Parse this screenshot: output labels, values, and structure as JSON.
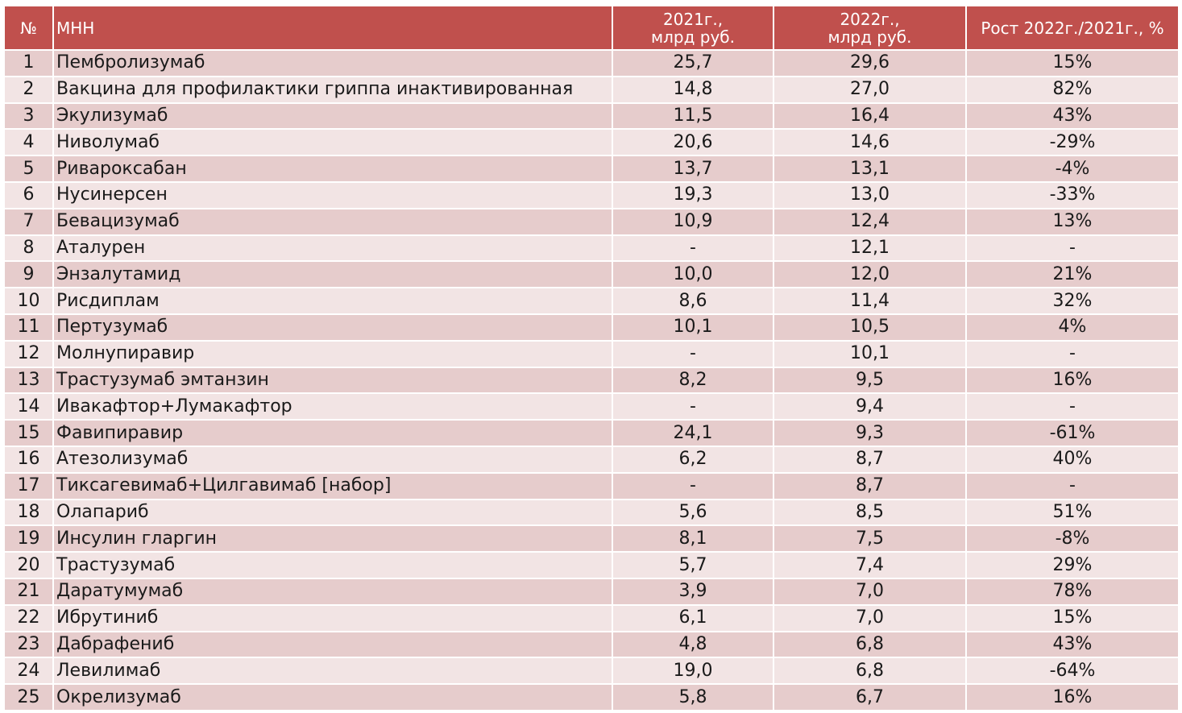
{
  "headers": {
    "num": "№",
    "name": "МНН",
    "y2021_line1": "2021г.,",
    "y2021_line2": "млрд руб.",
    "y2022_line1": "2022г.,",
    "y2022_line2": "млрд руб.",
    "growth": "Рост 2022г./2021г., %"
  },
  "colors": {
    "header_bg": "#c0504d",
    "row_dark": "#e6cccc",
    "row_light": "#f2e4e4"
  },
  "rows": [
    {
      "num": "1",
      "name": "Пембролизумаб",
      "v2021": "25,7",
      "v2022": "29,6",
      "growth": "15%"
    },
    {
      "num": "2",
      "name": "Вакцина для профилактики гриппа инактивированная",
      "v2021": "14,8",
      "v2022": "27,0",
      "growth": "82%"
    },
    {
      "num": "3",
      "name": "Экулизумаб",
      "v2021": "11,5",
      "v2022": "16,4",
      "growth": "43%"
    },
    {
      "num": "4",
      "name": "Ниволумаб",
      "v2021": "20,6",
      "v2022": "14,6",
      "growth": "-29%"
    },
    {
      "num": "5",
      "name": "Ривароксабан",
      "v2021": "13,7",
      "v2022": "13,1",
      "growth": "-4%"
    },
    {
      "num": "6",
      "name": "Нусинерсен",
      "v2021": "19,3",
      "v2022": "13,0",
      "growth": "-33%"
    },
    {
      "num": "7",
      "name": "Бевацизумаб",
      "v2021": "10,9",
      "v2022": "12,4",
      "growth": "13%"
    },
    {
      "num": "8",
      "name": "Аталурен",
      "v2021": "-",
      "v2022": "12,1",
      "growth": "-"
    },
    {
      "num": "9",
      "name": "Энзалутамид",
      "v2021": "10,0",
      "v2022": "12,0",
      "growth": "21%"
    },
    {
      "num": "10",
      "name": "Рисдиплам",
      "v2021": "8,6",
      "v2022": "11,4",
      "growth": "32%"
    },
    {
      "num": "11",
      "name": "Пертузумаб",
      "v2021": "10,1",
      "v2022": "10,5",
      "growth": "4%"
    },
    {
      "num": "12",
      "name": "Молнупиравир",
      "v2021": "-",
      "v2022": "10,1",
      "growth": "-"
    },
    {
      "num": "13",
      "name": "Трастузумаб эмтанзин",
      "v2021": "8,2",
      "v2022": "9,5",
      "growth": "16%"
    },
    {
      "num": "14",
      "name": "Ивакафтор+Лумакафтор",
      "v2021": "-",
      "v2022": "9,4",
      "growth": "-"
    },
    {
      "num": "15",
      "name": "Фавипиравир",
      "v2021": "24,1",
      "v2022": "9,3",
      "growth": "-61%"
    },
    {
      "num": "16",
      "name": "Атезолизумаб",
      "v2021": "6,2",
      "v2022": "8,7",
      "growth": "40%"
    },
    {
      "num": "17",
      "name": "Тиксагевимаб+Цилгавимаб [набор]",
      "v2021": "-",
      "v2022": "8,7",
      "growth": "-"
    },
    {
      "num": "18",
      "name": "Олапариб",
      "v2021": "5,6",
      "v2022": "8,5",
      "growth": "51%"
    },
    {
      "num": "19",
      "name": "Инсулин гларгин",
      "v2021": "8,1",
      "v2022": "7,5",
      "growth": "-8%"
    },
    {
      "num": "20",
      "name": "Трастузумаб",
      "v2021": "5,7",
      "v2022": "7,4",
      "growth": "29%"
    },
    {
      "num": "21",
      "name": "Даратумумаб",
      "v2021": "3,9",
      "v2022": "7,0",
      "growth": "78%"
    },
    {
      "num": "22",
      "name": "Ибрутиниб",
      "v2021": "6,1",
      "v2022": "7,0",
      "growth": "15%"
    },
    {
      "num": "23",
      "name": "Дабрафениб",
      "v2021": "4,8",
      "v2022": "6,8",
      "growth": "43%"
    },
    {
      "num": "24",
      "name": "Левилимаб",
      "v2021": "19,0",
      "v2022": "6,8",
      "growth": "-64%"
    },
    {
      "num": "25",
      "name": "Окрелизумаб",
      "v2021": "5,8",
      "v2022": "6,7",
      "growth": "16%"
    }
  ]
}
